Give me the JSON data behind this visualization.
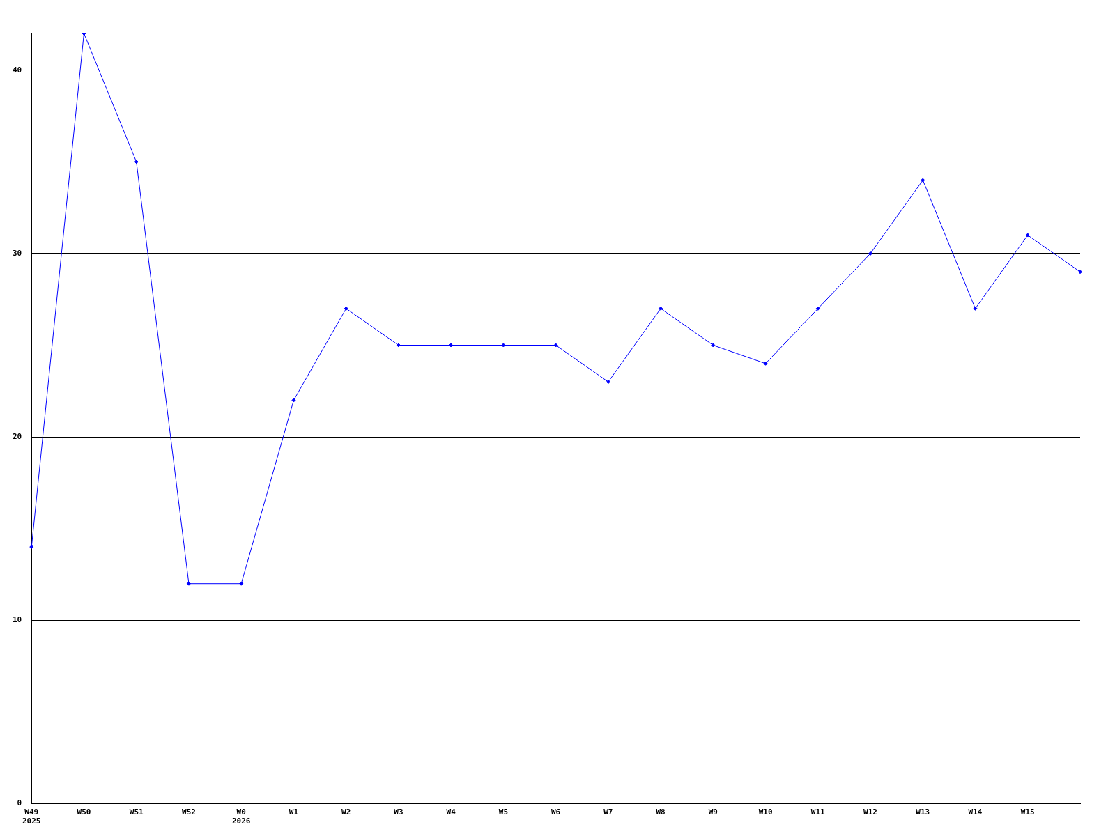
{
  "chart_data": {
    "type": "line",
    "categories": [
      "W49\n2025",
      "W50",
      "W51",
      "W52",
      "W0\n2026",
      "W1",
      "W2",
      "W3",
      "W4",
      "W5",
      "W6",
      "W7",
      "W8",
      "W9",
      "W10",
      "W11",
      "W12",
      "W13",
      "W14",
      "W15",
      null
    ],
    "series": [
      {
        "color": "#0000ff",
        "values": [
          14,
          42,
          35,
          12,
          12,
          22,
          27,
          25,
          25,
          25,
          25,
          23,
          27,
          25,
          24,
          27,
          30,
          34,
          27,
          31,
          29
        ]
      }
    ],
    "ylim": [
      0,
      42
    ],
    "yticks": [
      0,
      10,
      20,
      30,
      40
    ],
    "grid": "y",
    "legend": false,
    "marker": "diamond",
    "line_style": "solid"
  }
}
